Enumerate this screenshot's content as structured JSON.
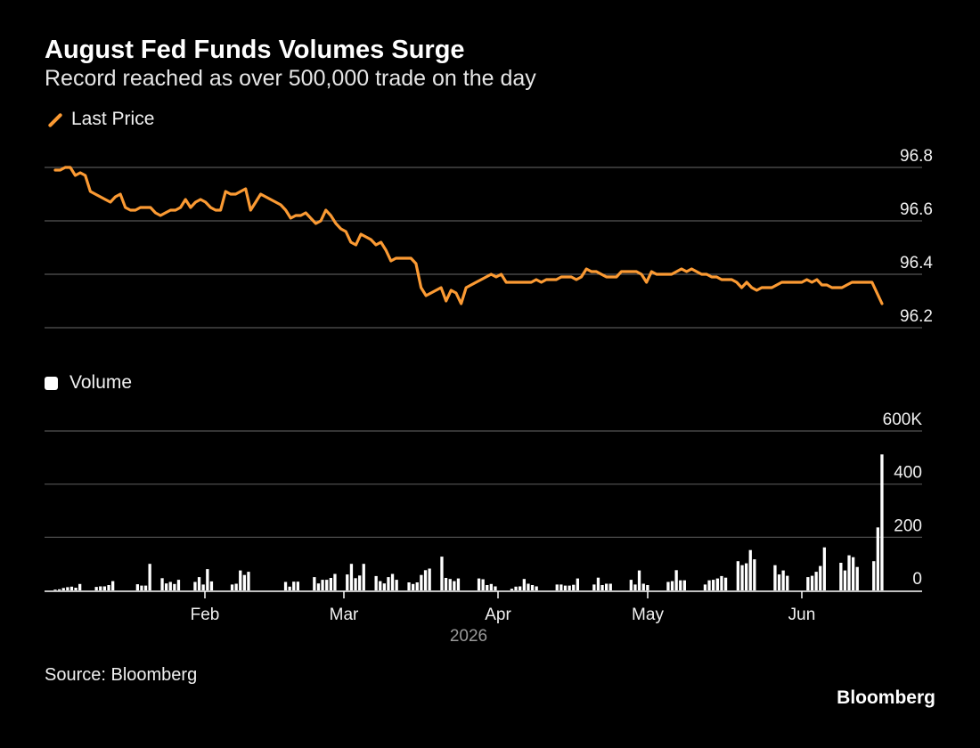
{
  "chart_data": {
    "type": "line+bar",
    "title": "August Fed Funds Volumes Surge",
    "subtitle": "Record reached as over 500,000 trade on the day",
    "source": "Source: Bloomberg",
    "brand": "Bloomberg",
    "year_label": "2026",
    "month_labels": [
      "Feb",
      "Mar",
      "Apr",
      "May",
      "Jun"
    ],
    "price_panel": {
      "legend": "Last Price",
      "color": "#fb9a33",
      "ylim": [
        96.2,
        96.8
      ],
      "yticks": [
        "96.8",
        "96.6",
        "96.4",
        "96.2"
      ],
      "grid": true,
      "values": [
        96.79,
        96.79,
        96.8,
        96.8,
        96.77,
        96.78,
        96.77,
        96.71,
        96.7,
        96.69,
        96.68,
        96.67,
        96.69,
        96.7,
        96.65,
        96.64,
        96.64,
        96.65,
        96.65,
        96.65,
        96.63,
        96.62,
        96.63,
        96.64,
        96.64,
        96.65,
        96.68,
        96.65,
        96.67,
        96.68,
        96.67,
        96.65,
        96.64,
        96.64,
        96.71,
        96.7,
        96.7,
        96.71,
        96.72,
        96.64,
        96.67,
        96.7,
        96.69,
        96.68,
        96.67,
        96.66,
        96.64,
        96.61,
        96.62,
        96.62,
        96.63,
        96.61,
        96.59,
        96.6,
        96.64,
        96.62,
        96.59,
        96.57,
        96.56,
        96.52,
        96.51,
        96.55,
        96.54,
        96.53,
        96.51,
        96.52,
        96.49,
        96.45,
        96.46,
        96.46,
        96.46,
        96.46,
        96.44,
        96.35,
        96.32,
        96.33,
        96.34,
        96.35,
        96.3,
        96.34,
        96.33,
        96.29,
        96.35,
        96.36,
        96.37,
        96.38,
        96.39,
        96.4,
        96.39,
        96.4,
        96.37,
        96.37,
        96.37,
        96.37,
        96.37,
        96.37,
        96.38,
        96.37,
        96.38,
        96.38,
        96.38,
        96.39,
        96.39,
        96.39,
        96.38,
        96.39,
        96.42,
        96.41,
        96.41,
        96.4,
        96.39,
        96.39,
        96.39,
        96.41,
        96.41,
        96.41,
        96.41,
        96.4,
        96.37,
        96.41,
        96.4,
        96.4,
        96.4,
        96.4,
        96.41,
        96.42,
        96.41,
        96.42,
        96.41,
        96.4,
        96.4,
        96.39,
        96.39,
        96.38,
        96.38,
        96.38,
        96.37,
        96.35,
        96.37,
        96.35,
        96.34,
        96.35,
        96.35,
        96.35,
        96.36,
        96.37,
        96.37,
        96.37,
        96.37,
        96.37,
        96.38,
        96.37,
        96.38,
        96.36,
        96.36,
        96.35,
        96.35,
        96.35,
        96.36,
        96.37,
        96.37,
        96.37,
        96.37,
        96.37,
        96.33,
        96.29
      ]
    },
    "volume_panel": {
      "legend": "Volume",
      "color": "#ffffff",
      "ylim": [
        0,
        600000
      ],
      "yticks": [
        "600K",
        "400",
        "200",
        "0"
      ],
      "grid": true,
      "values": [
        3000,
        4000,
        9000,
        12000,
        14000,
        10000,
        24000,
        0,
        0,
        0,
        13000,
        15000,
        15000,
        20000,
        35000,
        0,
        0,
        0,
        0,
        0,
        23000,
        18000,
        18000,
        100000,
        0,
        0,
        46000,
        26000,
        32000,
        24000,
        40000,
        0,
        0,
        0,
        32000,
        50000,
        22000,
        80000,
        34000,
        0,
        0,
        0,
        0,
        22000,
        25000,
        75000,
        58000,
        70000,
        0,
        0,
        0,
        0,
        0,
        0,
        0,
        0,
        32000,
        14000,
        33000,
        33000,
        0,
        0,
        0,
        50000,
        26000,
        40000,
        40000,
        47000,
        62000,
        0,
        0,
        60000,
        100000,
        46000,
        56000,
        100000,
        0,
        0,
        54000,
        35000,
        26000,
        50000,
        62000,
        40000,
        0,
        0,
        30000,
        24000,
        30000,
        58000,
        76000,
        82000,
        0,
        0,
        127000,
        47000,
        43000,
        35000,
        45000,
        0,
        0,
        0,
        0,
        45000,
        42000,
        20000,
        24000,
        15000,
        0,
        0,
        0,
        6000,
        14000,
        15000,
        43000,
        25000,
        20000,
        15000,
        0,
        0,
        0,
        0,
        22000,
        22000,
        18000,
        18000,
        21000,
        45000,
        0,
        0,
        0,
        22000,
        48000,
        20000,
        25000,
        25000,
        0,
        0,
        0,
        0,
        40000,
        22000,
        75000,
        25000,
        20000,
        0,
        0,
        0,
        0,
        32000,
        35000,
        76000,
        38000,
        38000,
        0,
        0,
        0,
        0,
        22000,
        38000,
        40000,
        45000,
        54000,
        48000,
        0,
        0,
        110000,
        95000,
        102000,
        152000,
        117000,
        0,
        0,
        0,
        0,
        95000,
        60000,
        75000,
        55000,
        0,
        0,
        0,
        0,
        50000,
        55000,
        70000,
        92000,
        162000,
        0,
        0,
        0,
        104000,
        75000,
        132000,
        125000,
        88000,
        0,
        0,
        0,
        110000,
        237000,
        512000
      ]
    }
  }
}
